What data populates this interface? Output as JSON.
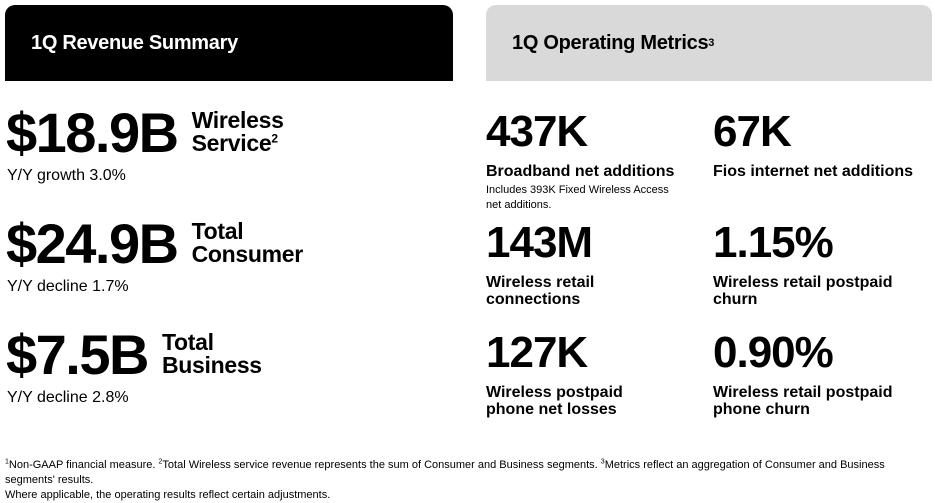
{
  "revenue_header": {
    "title": "1Q Revenue Summary"
  },
  "metrics_header": {
    "title": "1Q Operating Metrics",
    "superscript": "3"
  },
  "revenue": [
    {
      "value": "$18.9B",
      "label_line1": "Wireless",
      "label_line2": "Service",
      "label_sup": "2",
      "sub": "Y/Y growth 3.0%"
    },
    {
      "value": "$24.9B",
      "label_line1": "Total",
      "label_line2": "Consumer",
      "label_sup": "",
      "sub": "Y/Y decline 1.7%"
    },
    {
      "value": "$7.5B",
      "label_line1": "Total",
      "label_line2": "Business",
      "label_sup": "",
      "sub": "Y/Y decline 2.8%"
    }
  ],
  "metrics": [
    {
      "value": "437K",
      "label_line1": "Broadband net additions",
      "label_line2": "",
      "note_line1": "Includes 393K Fixed Wireless Access",
      "note_line2": "net additions."
    },
    {
      "value": "67K",
      "label_line1": "Fios internet net additions",
      "label_line2": ""
    },
    {
      "value": "143M",
      "label_line1": "Wireless retail",
      "label_line2": "connections"
    },
    {
      "value": "1.15%",
      "label_line1": "Wireless retail postpaid",
      "label_line2": "churn"
    },
    {
      "value": "127K",
      "label_line1": "Wireless postpaid",
      "label_line2": "phone net losses"
    },
    {
      "value": "0.90%",
      "label_line1": "Wireless retail postpaid",
      "label_line2": "phone churn"
    }
  ],
  "footnotes": {
    "sup1": "1",
    "text1": "Non-GAAP financial measure. ",
    "sup2": "2",
    "text2": "Total Wireless service revenue represents the sum of Consumer and Business segments. ",
    "sup3": "3",
    "text3": "Metrics reflect an aggregation of Consumer and Business segments' results.",
    "line2": "Where applicable, the operating results reflect certain adjustments."
  }
}
